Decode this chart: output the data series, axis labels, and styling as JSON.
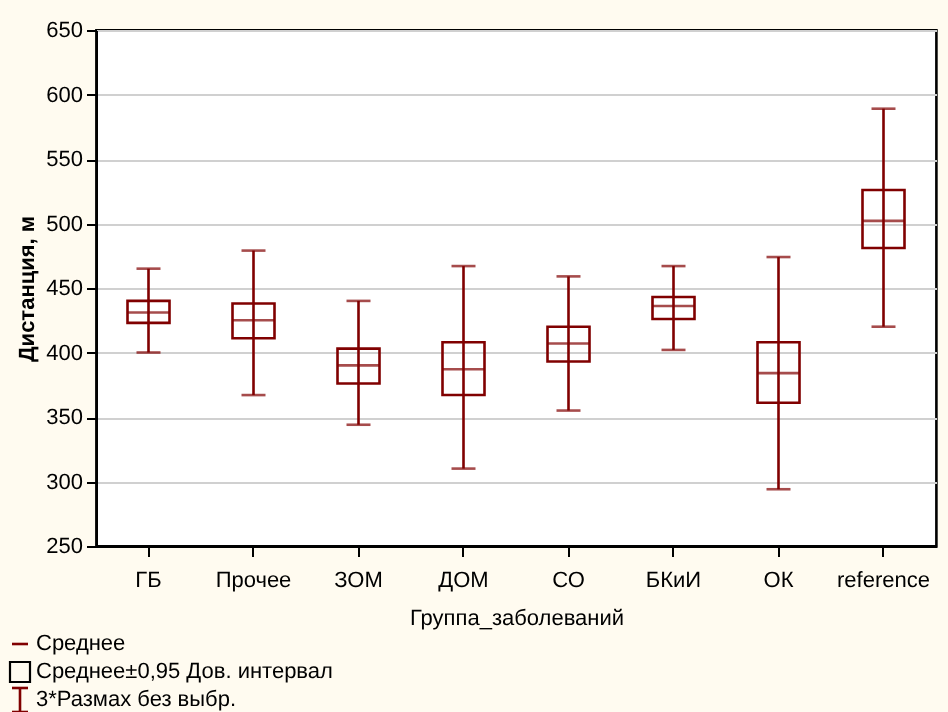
{
  "chart_data": {
    "type": "box",
    "xlabel": "Группа_заболеваний",
    "ylabel": "Дистанция, м",
    "categories": [
      "ГБ",
      "Прочее",
      "ЗОМ",
      "ДОМ",
      "СО",
      "БКиИ",
      "ОК",
      "reference"
    ],
    "boxes": [
      {
        "low": 400,
        "q1": 423,
        "median": 431,
        "q3": 440,
        "high": 465
      },
      {
        "low": 367,
        "q1": 411,
        "median": 425,
        "q3": 438,
        "high": 479
      },
      {
        "low": 344,
        "q1": 376,
        "median": 390,
        "q3": 403,
        "high": 440
      },
      {
        "low": 310,
        "q1": 367,
        "median": 387,
        "q3": 408,
        "high": 467
      },
      {
        "low": 355,
        "q1": 393,
        "median": 407,
        "q3": 420,
        "high": 459
      },
      {
        "low": 402,
        "q1": 426,
        "median": 436,
        "q3": 443,
        "high": 467
      },
      {
        "low": 294,
        "q1": 361,
        "median": 384,
        "q3": 408,
        "high": 474
      },
      {
        "low": 420,
        "q1": 481,
        "median": 502,
        "q3": 526,
        "high": 589
      }
    ],
    "color": "#800000",
    "ylim": [
      250,
      650
    ],
    "yticks": [
      250,
      300,
      350,
      400,
      450,
      500,
      550,
      600,
      650
    ],
    "grid": "y",
    "annotations": [
      "Среднее",
      "Среднее±0,95 Дов. интервал",
      "3*Размах без выбр."
    ]
  }
}
